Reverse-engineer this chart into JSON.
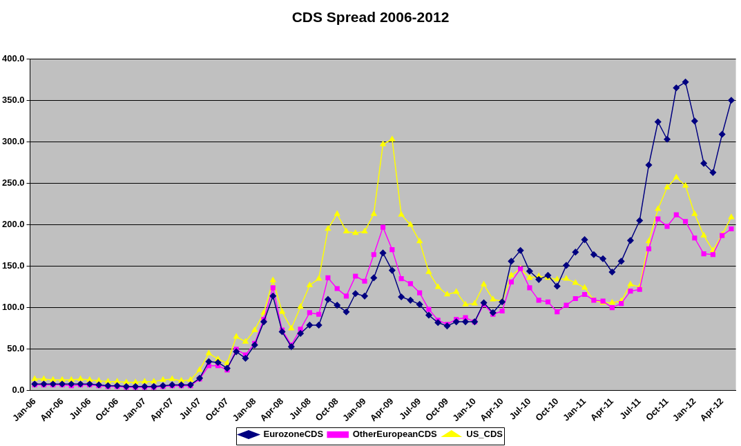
{
  "chart_data": {
    "type": "line",
    "title": "CDS Spread 2006-2012",
    "categories": [
      "Jan-06",
      null,
      null,
      "Apr-06",
      null,
      null,
      "Jul-06",
      null,
      null,
      "Oct-06",
      null,
      null,
      "Jan-07",
      null,
      null,
      "Apr-07",
      null,
      null,
      "Jul-07",
      null,
      null,
      "Oct-07",
      null,
      null,
      "Jan-08",
      null,
      null,
      "Apr-08",
      null,
      null,
      "Jul-08",
      null,
      null,
      "Oct-08",
      null,
      null,
      "Jan-09",
      null,
      null,
      "Apr-09",
      null,
      null,
      "Jul-09",
      null,
      null,
      "Oct-09",
      null,
      null,
      "Jan-10",
      null,
      null,
      "Apr-10",
      null,
      null,
      "Jul-10",
      null,
      null,
      "Oct-10",
      null,
      null,
      "Jan-11",
      null,
      null,
      "Apr-11",
      null,
      null,
      "Jul-11",
      null,
      null,
      "Oct-11",
      null,
      null,
      "Jan-12",
      null,
      null,
      "Apr-12",
      null
    ],
    "series": [
      {
        "name": "EurozoneCDS",
        "color": "#000080",
        "marker": "diamond",
        "values": [
          8,
          8,
          8,
          8,
          8,
          8,
          8,
          7,
          6,
          6,
          5,
          5,
          5,
          5,
          6,
          7,
          7,
          7,
          15,
          35,
          34,
          27,
          47,
          39,
          55,
          83,
          114,
          71,
          53,
          69,
          79,
          79,
          110,
          103,
          95,
          117,
          114,
          136,
          166,
          145,
          113,
          109,
          104,
          91,
          82,
          78,
          83,
          83,
          83,
          106,
          94,
          107,
          156,
          169,
          144,
          134,
          139,
          126,
          151,
          167,
          182,
          164,
          159,
          143,
          156,
          181,
          205,
          272,
          324,
          303,
          365,
          372,
          325,
          274,
          263,
          309,
          350
        ]
      },
      {
        "name": "OtherEuropeanCDS",
        "color": "#ff00ff",
        "marker": "square",
        "values": [
          7,
          7,
          7,
          7,
          6,
          7,
          7,
          6,
          5,
          5,
          4,
          4,
          4,
          4,
          5,
          6,
          6,
          6,
          14,
          30,
          30,
          25,
          50,
          43,
          57,
          86,
          124,
          73,
          55,
          74,
          94,
          92,
          136,
          123,
          114,
          138,
          132,
          164,
          197,
          170,
          135,
          129,
          118,
          98,
          85,
          80,
          86,
          88,
          83,
          104,
          92,
          96,
          131,
          147,
          124,
          109,
          107,
          95,
          103,
          111,
          116,
          109,
          108,
          100,
          105,
          120,
          122,
          171,
          207,
          198,
          212,
          204,
          184,
          165,
          164,
          187,
          195
        ]
      },
      {
        "name": "US_CDS",
        "color": "#ffff00",
        "marker": "triangle",
        "values": [
          14,
          14,
          13,
          13,
          13,
          14,
          13,
          12,
          11,
          11,
          10,
          10,
          11,
          11,
          13,
          14,
          12,
          13,
          25,
          45,
          38,
          33,
          65,
          59,
          73,
          94,
          133,
          95,
          75,
          101,
          127,
          135,
          195,
          213,
          192,
          190,
          192,
          213,
          297,
          303,
          212,
          200,
          180,
          143,
          125,
          116,
          119,
          104,
          105,
          128,
          110,
          108,
          139,
          147,
          136,
          138,
          136,
          134,
          135,
          130,
          124,
          109,
          106,
          106,
          108,
          128,
          125,
          180,
          219,
          245,
          257,
          247,
          213,
          187,
          169,
          188,
          209
        ]
      }
    ],
    "ylim": [
      0,
      400
    ],
    "yticks": [
      {
        "value": 0,
        "label": "0.0"
      },
      {
        "value": 50,
        "label": "50.0"
      },
      {
        "value": 100,
        "label": "100.0"
      },
      {
        "value": 150,
        "label": "150.0"
      },
      {
        "value": 200,
        "label": "200.0"
      },
      {
        "value": 250,
        "label": "250.0"
      },
      {
        "value": 300,
        "label": "300.0"
      },
      {
        "value": 350,
        "label": "350.0"
      },
      {
        "value": 400,
        "label": "400.0"
      }
    ],
    "grid": "y",
    "legend": "bottom",
    "line_style": "solid"
  }
}
